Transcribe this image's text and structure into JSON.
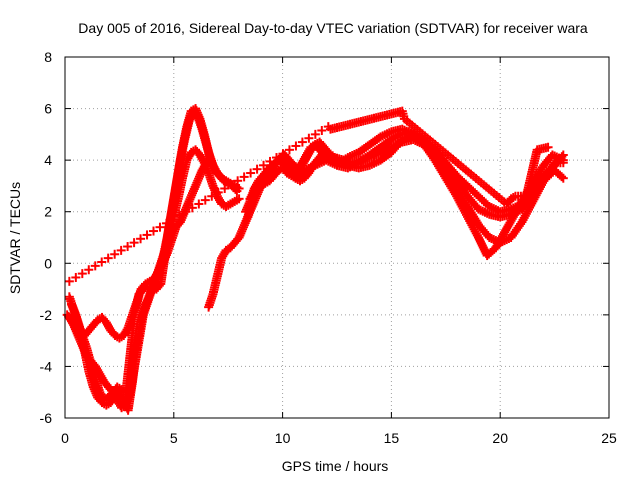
{
  "chart_data": {
    "type": "scatter",
    "title": "Day 005 of 2016, Sidereal Day-to-day VTEC variation (SDTVAR) for receiver wara",
    "xlabel": "GPS time / hours",
    "ylabel": "SDTVAR / TECUs",
    "xlim": [
      0,
      25
    ],
    "ylim": [
      -6,
      8
    ],
    "xticks": [
      0,
      5,
      10,
      15,
      20,
      25
    ],
    "yticks": [
      -6,
      -4,
      -2,
      0,
      2,
      4,
      6,
      8
    ],
    "grid": true,
    "marker": "plus",
    "color": "#ff0000",
    "series": [
      {
        "x": [
          0.2,
          0.4,
          0.6,
          0.8,
          1.0,
          1.2,
          1.4,
          1.6,
          1.8,
          2.0,
          2.2,
          2.4,
          2.6,
          2.8,
          3.0,
          3.2,
          3.4,
          3.6,
          3.8,
          4.0,
          4.2,
          4.4,
          4.6,
          4.8,
          5.0,
          5.2,
          5.4,
          5.6,
          5.8,
          6.0,
          6.2,
          6.4,
          6.6,
          6.8,
          7.0,
          7.2,
          7.4,
          7.6,
          7.8,
          8.0
        ],
        "y": [
          -2.1,
          -2.4,
          -2.8,
          -3.2,
          -3.6,
          -3.8,
          -4.0,
          -4.3,
          -4.6,
          -4.8,
          -5.0,
          -5.3,
          -5.6,
          -5.5,
          -5.0,
          -4.0,
          -3.0,
          -2.0,
          -1.5,
          -1.0,
          -0.5,
          0.0,
          0.5,
          1.5,
          2.5,
          3.5,
          4.5,
          5.3,
          5.9,
          6.0,
          5.6,
          5.0,
          4.3,
          3.8,
          3.5,
          3.3,
          3.2,
          3.1,
          3.0,
          2.9
        ]
      },
      {
        "x": [
          0.2,
          0.4,
          0.6,
          0.8,
          1.0,
          1.2,
          1.4,
          1.6,
          1.8,
          2.0,
          2.2,
          2.4,
          2.6,
          2.8,
          3.0,
          3.2,
          3.4,
          3.6,
          3.8,
          4.0,
          4.2,
          4.4,
          4.6,
          4.8,
          5.0,
          5.2,
          5.4,
          5.6,
          5.8,
          6.0,
          6.2,
          6.4,
          6.6,
          6.8,
          7.0,
          7.2,
          7.4,
          7.6,
          7.8,
          8.0
        ],
        "y": [
          -1.3,
          -1.8,
          -2.3,
          -2.8,
          -3.3,
          -3.9,
          -4.5,
          -5.0,
          -5.3,
          -5.2,
          -5.0,
          -4.8,
          -4.9,
          -5.0,
          -3.5,
          -2.0,
          -1.2,
          -1.0,
          -0.9,
          -0.9,
          -1.0,
          -0.8,
          0.3,
          1.0,
          1.8,
          2.5,
          3.3,
          4.0,
          4.3,
          4.4,
          4.2,
          3.9,
          3.5,
          3.0,
          2.6,
          2.3,
          2.2,
          2.3,
          2.4,
          2.5
        ]
      },
      {
        "x": [
          0.1,
          0.3,
          0.5,
          0.7,
          0.9,
          1.1,
          1.3,
          1.5,
          1.7,
          1.9,
          2.1,
          2.3,
          2.5,
          2.7,
          2.9,
          3.1,
          3.3,
          3.5,
          3.7,
          3.9,
          4.1,
          4.3,
          4.5,
          4.7,
          4.9,
          5.1,
          5.3,
          5.5,
          5.7,
          5.9,
          6.1,
          6.3,
          6.5,
          6.7
        ],
        "y": [
          -2.0,
          -2.2,
          -2.5,
          -2.8,
          -2.8,
          -2.6,
          -2.4,
          -2.2,
          -2.1,
          -2.3,
          -2.6,
          -2.8,
          -2.9,
          -2.8,
          -2.5,
          -2.0,
          -1.5,
          -1.0,
          -0.8,
          -0.7,
          -0.6,
          -0.3,
          0.0,
          0.4,
          0.9,
          1.4,
          1.6,
          2.0,
          2.4,
          2.8,
          3.2,
          3.6,
          3.9,
          4.0
        ]
      },
      {
        "x": [
          6.6,
          6.8,
          7.0,
          7.2,
          7.4,
          7.6,
          7.8,
          8.0,
          8.2,
          8.4,
          8.6,
          8.8,
          9.0,
          9.2,
          9.4,
          9.6,
          9.8,
          10.0,
          10.2,
          10.4,
          10.6,
          10.8,
          11.0,
          11.5,
          12.0,
          12.5,
          13.0,
          13.5,
          14.0,
          14.5,
          15.0,
          15.5,
          16.0,
          16.5,
          17.0,
          17.5,
          18.0,
          18.5,
          19.0,
          19.5,
          20.0,
          20.5,
          21.0,
          21.5,
          22.0,
          22.5,
          22.9
        ],
        "y": [
          -1.7,
          -1.2,
          -0.5,
          0.2,
          0.5,
          0.6,
          0.8,
          1.0,
          1.4,
          1.8,
          2.4,
          2.8,
          3.0,
          3.1,
          3.2,
          3.4,
          3.6,
          3.7,
          3.5,
          3.4,
          3.3,
          3.4,
          3.6,
          3.8,
          4.0,
          3.8,
          3.7,
          3.9,
          4.1,
          4.3,
          4.5,
          4.7,
          4.8,
          4.6,
          4.3,
          3.9,
          3.4,
          3.0,
          2.6,
          2.2,
          2.0,
          2.1,
          2.3,
          2.8,
          3.4,
          3.8,
          4.2
        ]
      },
      {
        "x": [
          8.4,
          8.6,
          8.8,
          9.0,
          9.2,
          9.4,
          9.6,
          9.8,
          10.0,
          10.2,
          10.4,
          10.6,
          10.8,
          11.0,
          11.2,
          11.4,
          11.6,
          11.8,
          12.0,
          12.5,
          13.0,
          13.5,
          14.0,
          14.5,
          15.0,
          15.5,
          16.0,
          16.5,
          17.0,
          17.5,
          18.0,
          18.5,
          19.0,
          19.5,
          20.0,
          20.5,
          21.0,
          21.5,
          22.0,
          22.5,
          22.9
        ],
        "y": [
          1.8,
          2.2,
          2.6,
          3.0,
          3.3,
          3.5,
          3.8,
          4.0,
          4.1,
          3.9,
          3.6,
          3.3,
          3.2,
          3.3,
          3.5,
          3.8,
          4.0,
          4.2,
          4.3,
          4.0,
          3.8,
          3.7,
          3.8,
          4.0,
          4.3,
          4.8,
          5.0,
          4.8,
          4.2,
          3.5,
          2.8,
          2.2,
          1.5,
          1.0,
          0.8,
          1.0,
          1.6,
          2.4,
          3.2,
          3.6,
          3.3
        ]
      },
      {
        "x": [
          8.5,
          8.7,
          8.9,
          9.1,
          9.3,
          9.5,
          9.7,
          9.9,
          10.1,
          10.3,
          10.5,
          10.7,
          10.9,
          11.1,
          11.3,
          11.5,
          11.7,
          11.9,
          12.2,
          12.6,
          13.0,
          13.5,
          14.0,
          14.5,
          15.0,
          15.5,
          16.0,
          16.5,
          17.0,
          17.5,
          18.0,
          18.5,
          19.0,
          19.4,
          19.8,
          20.2,
          20.6,
          21.0,
          21.5,
          22.0,
          22.4,
          22.9
        ],
        "y": [
          2.5,
          2.8,
          3.1,
          3.3,
          3.5,
          3.7,
          3.9,
          4.1,
          4.2,
          4.0,
          3.8,
          3.7,
          3.9,
          4.2,
          4.5,
          4.6,
          4.4,
          4.2,
          4.0,
          3.9,
          4.1,
          4.3,
          4.6,
          4.9,
          5.1,
          5.2,
          5.0,
          4.6,
          4.0,
          3.3,
          2.6,
          1.8,
          1.0,
          0.3,
          0.6,
          1.2,
          1.8,
          2.4,
          3.1,
          3.8,
          4.2,
          4.0
        ]
      },
      {
        "x": [
          8.3,
          8.5,
          8.7,
          8.9,
          9.1,
          9.3,
          9.5,
          9.7,
          9.9,
          10.1,
          10.3,
          10.5,
          10.7,
          10.9,
          11.1,
          11.3,
          11.5,
          11.7,
          11.9,
          12.1,
          12.4,
          12.8,
          13.2,
          13.6,
          14.0,
          14.5,
          15.0,
          15.4,
          15.8,
          16.2,
          16.6,
          17.0,
          17.5,
          18.0,
          18.5,
          19.0,
          19.5,
          20.0,
          20.5,
          21.0,
          21.5,
          22.0,
          22.5,
          22.9
        ],
        "y": [
          2.0,
          2.4,
          2.9,
          3.2,
          3.4,
          3.6,
          3.8,
          3.9,
          3.9,
          3.8,
          3.6,
          3.5,
          3.6,
          3.8,
          4.1,
          4.4,
          4.6,
          4.7,
          4.5,
          4.3,
          4.1,
          4.0,
          3.9,
          4.0,
          4.2,
          4.5,
          4.8,
          5.0,
          5.1,
          4.9,
          4.7,
          4.4,
          3.9,
          3.2,
          2.6,
          2.1,
          1.9,
          1.8,
          1.9,
          2.1,
          2.6,
          3.3,
          3.9,
          3.9
        ]
      },
      {
        "x": [
          0.3,
          0.5,
          0.7,
          0.9,
          1.1,
          1.3,
          1.5,
          1.7,
          1.9,
          2.1,
          2.3,
          2.5,
          2.7,
          2.9,
          3.1,
          3.3,
          3.5,
          3.7,
          3.9,
          4.1,
          4.3,
          4.5,
          4.7,
          4.9,
          5.1,
          5.3,
          5.5,
          5.7,
          5.9,
          6.1,
          6.3,
          6.5,
          6.7,
          6.9,
          7.1,
          7.3,
          7.5,
          7.7,
          7.9
        ],
        "y": [
          -1.6,
          -2.0,
          -2.6,
          -3.4,
          -4.2,
          -4.8,
          -5.2,
          -5.4,
          -5.5,
          -5.4,
          -5.2,
          -5.0,
          -5.3,
          -5.7,
          -4.6,
          -3.2,
          -2.2,
          -1.6,
          -1.2,
          -0.8,
          -0.4,
          0.2,
          1.0,
          2.0,
          3.0,
          4.0,
          4.8,
          5.5,
          5.9,
          5.7,
          5.2,
          4.6,
          4.0,
          3.6,
          3.4,
          3.2,
          3.1,
          3.0,
          2.8
        ]
      },
      {
        "x": [
          0.2,
          12.1,
          12.2,
          15.5,
          15.6,
          20.3,
          20.5,
          20.7,
          21.2,
          21.7,
          22.2
        ],
        "y": [
          -0.7,
          5.3,
          5.2,
          5.9,
          5.6,
          2.3,
          2.5,
          2.6,
          2.6,
          4.4,
          4.5
        ]
      }
    ]
  }
}
